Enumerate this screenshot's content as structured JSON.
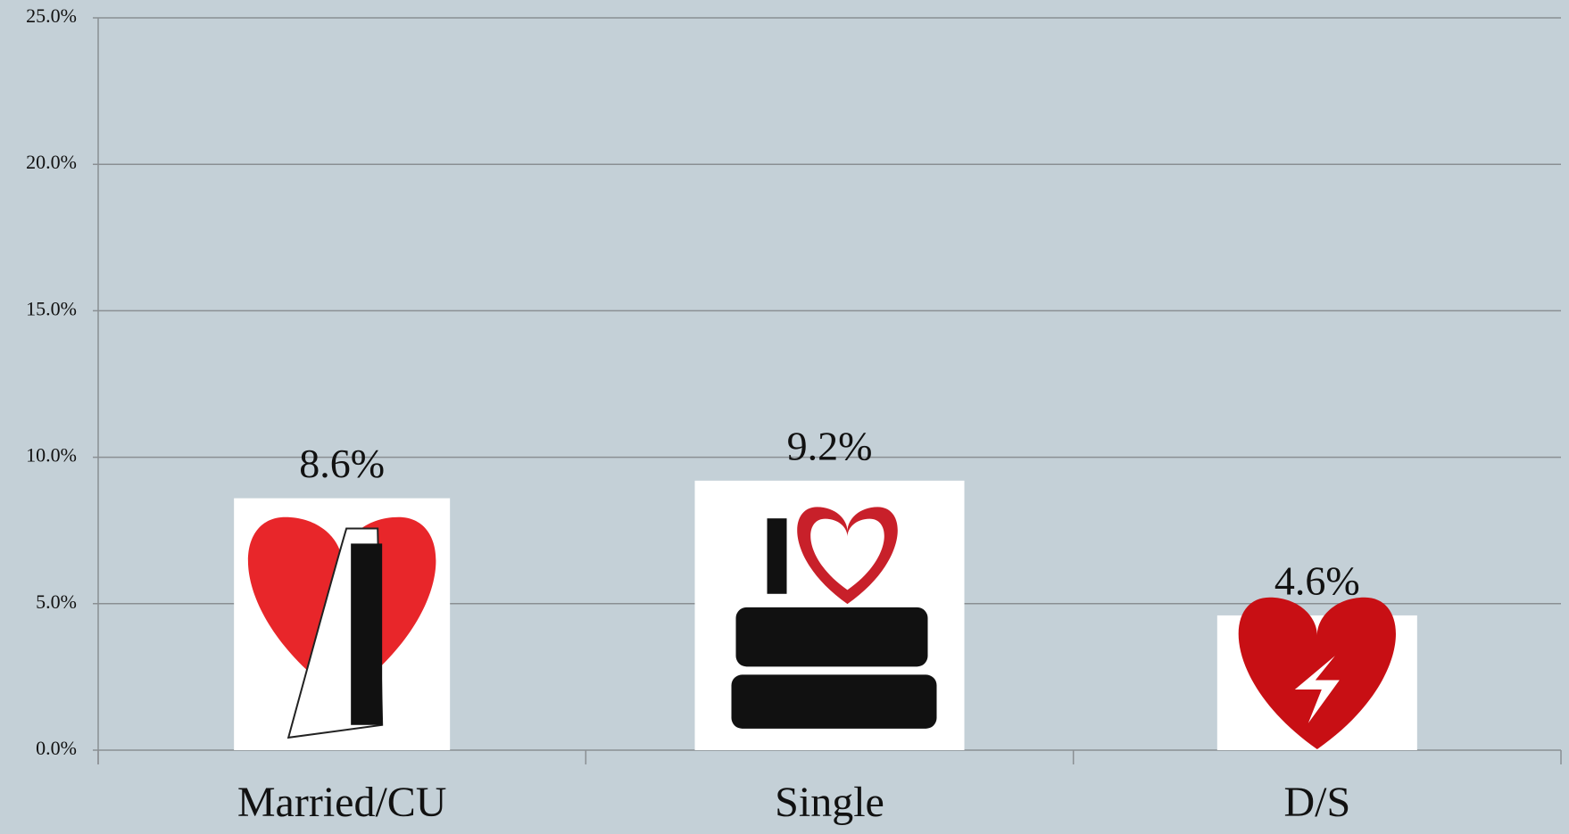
{
  "chart_data": {
    "type": "bar",
    "categories": [
      "Married/CU",
      "Single",
      "D/S"
    ],
    "values": [
      8.6,
      9.2,
      4.6
    ],
    "value_labels": [
      "8.6%",
      "9.2%",
      "4.6%"
    ],
    "color": "#ffffff",
    "ylim": [
      0,
      25
    ],
    "yticks": [
      {
        "value": 0,
        "label": "0.0%"
      },
      {
        "value": 5,
        "label": "5.0%"
      },
      {
        "value": 10,
        "label": "10.0%"
      },
      {
        "value": 15,
        "label": "15.0%"
      },
      {
        "value": 20,
        "label": "20.0%"
      },
      {
        "value": 25,
        "label": "25.0%"
      }
    ],
    "grid": true
  }
}
